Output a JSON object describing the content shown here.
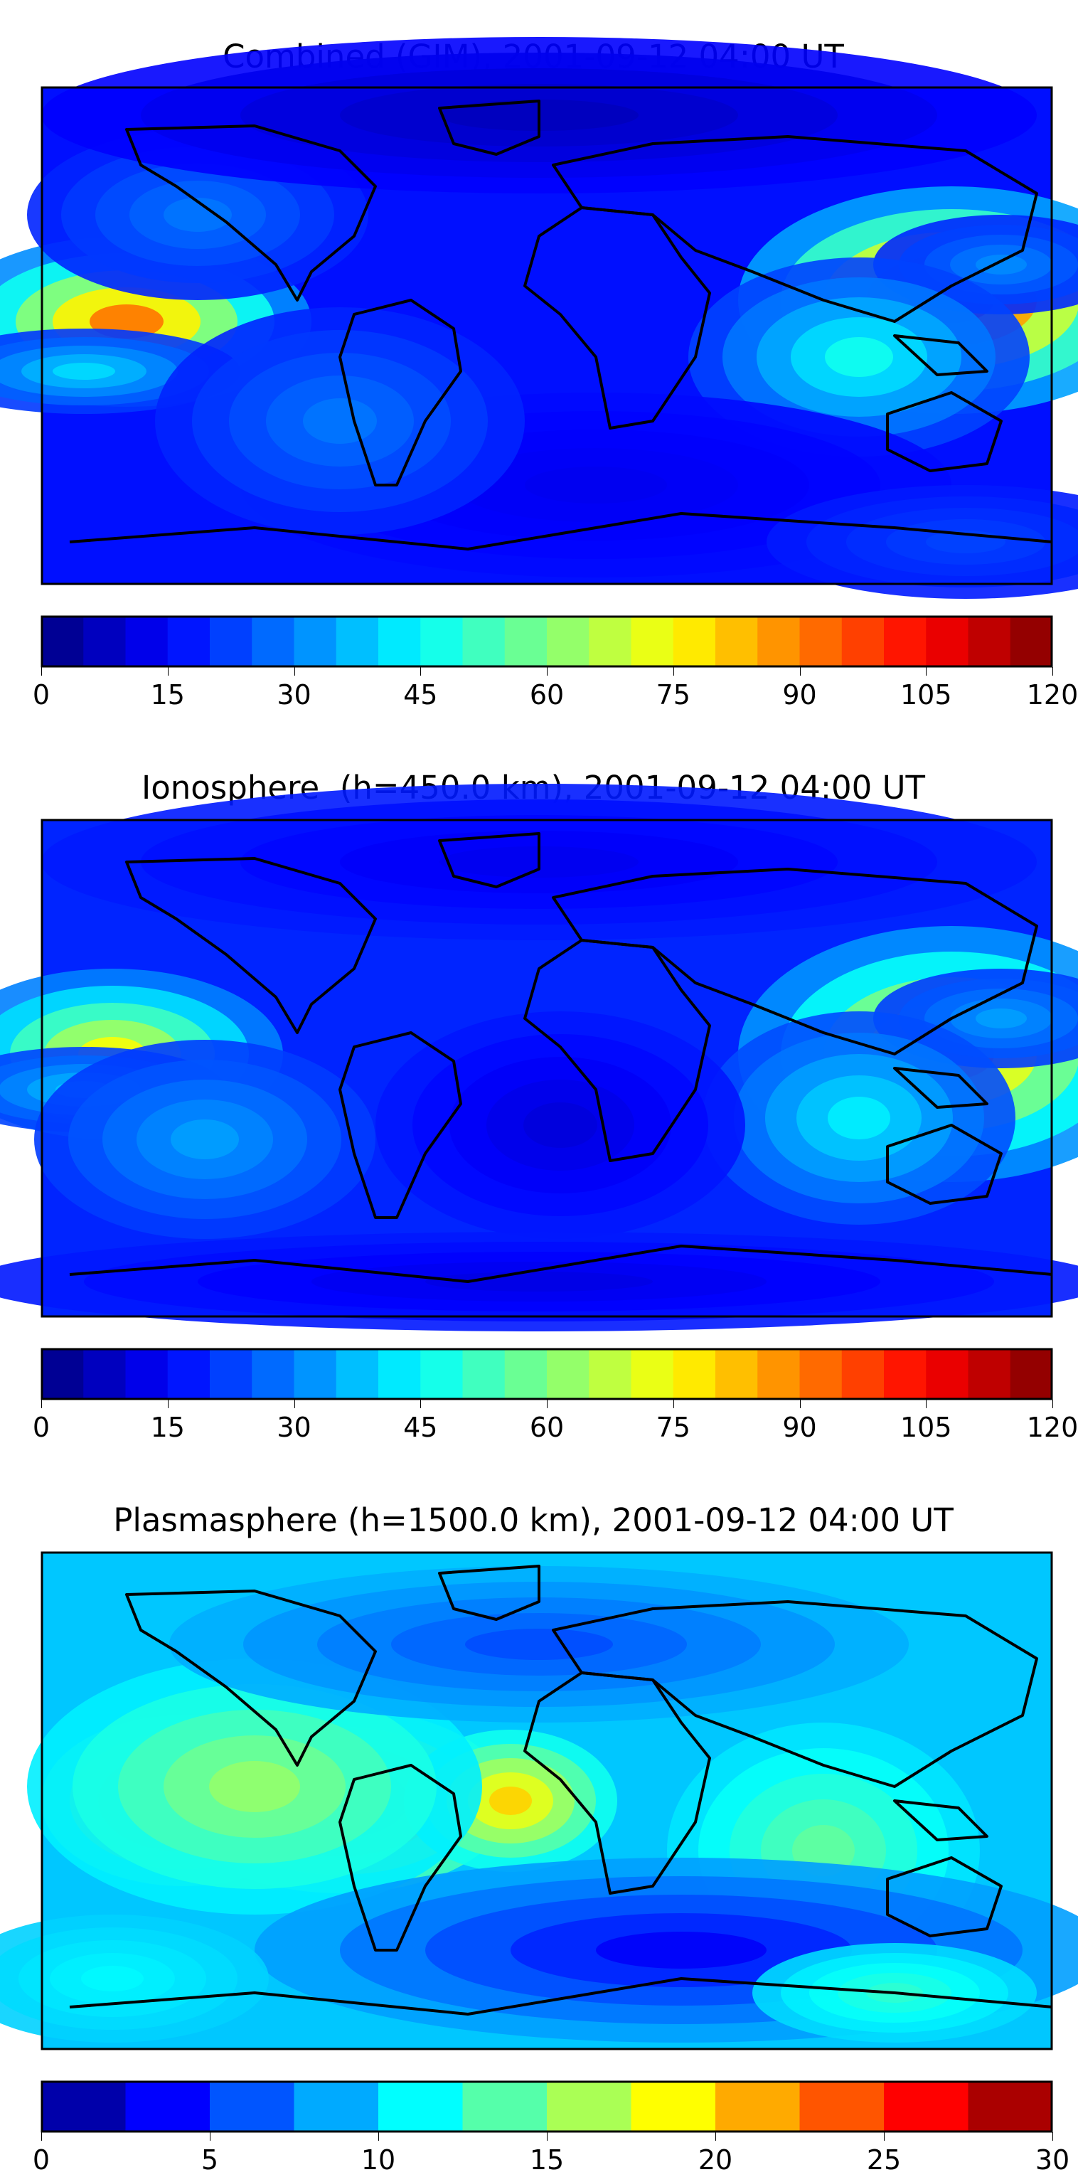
{
  "panels": [
    {
      "title": "Combined (GIM), 2001-09-12 04:00 UT",
      "colorbar": {
        "colormap": "jet",
        "vmin": 0,
        "vmax": 120,
        "levels": 24,
        "ticks": [
          "0",
          "15",
          "30",
          "45",
          "60",
          "75",
          "90",
          "105",
          "120"
        ]
      }
    },
    {
      "title": "Ionosphere  (h=450.0 km), 2001-09-12 04:00 UT",
      "colorbar": {
        "colormap": "jet",
        "vmin": 0,
        "vmax": 120,
        "levels": 24,
        "ticks": [
          "0",
          "15",
          "30",
          "45",
          "60",
          "75",
          "90",
          "105",
          "120"
        ]
      }
    },
    {
      "title": "Plasmasphere (h=1500.0 km), 2001-09-12 04:00 UT",
      "colorbar": {
        "colormap": "jet",
        "vmin": 0,
        "vmax": 30,
        "levels": 12,
        "ticks": [
          "0",
          "5",
          "10",
          "15",
          "20",
          "25",
          "30"
        ]
      }
    }
  ],
  "colors": {
    "jet_stops": [
      "#00007f",
      "#0000ff",
      "#007fff",
      "#00ffff",
      "#7fff7f",
      "#ffff00",
      "#ff7f00",
      "#ff0000",
      "#7f0000"
    ],
    "coastline": "#000000",
    "frame": "#000000"
  }
}
